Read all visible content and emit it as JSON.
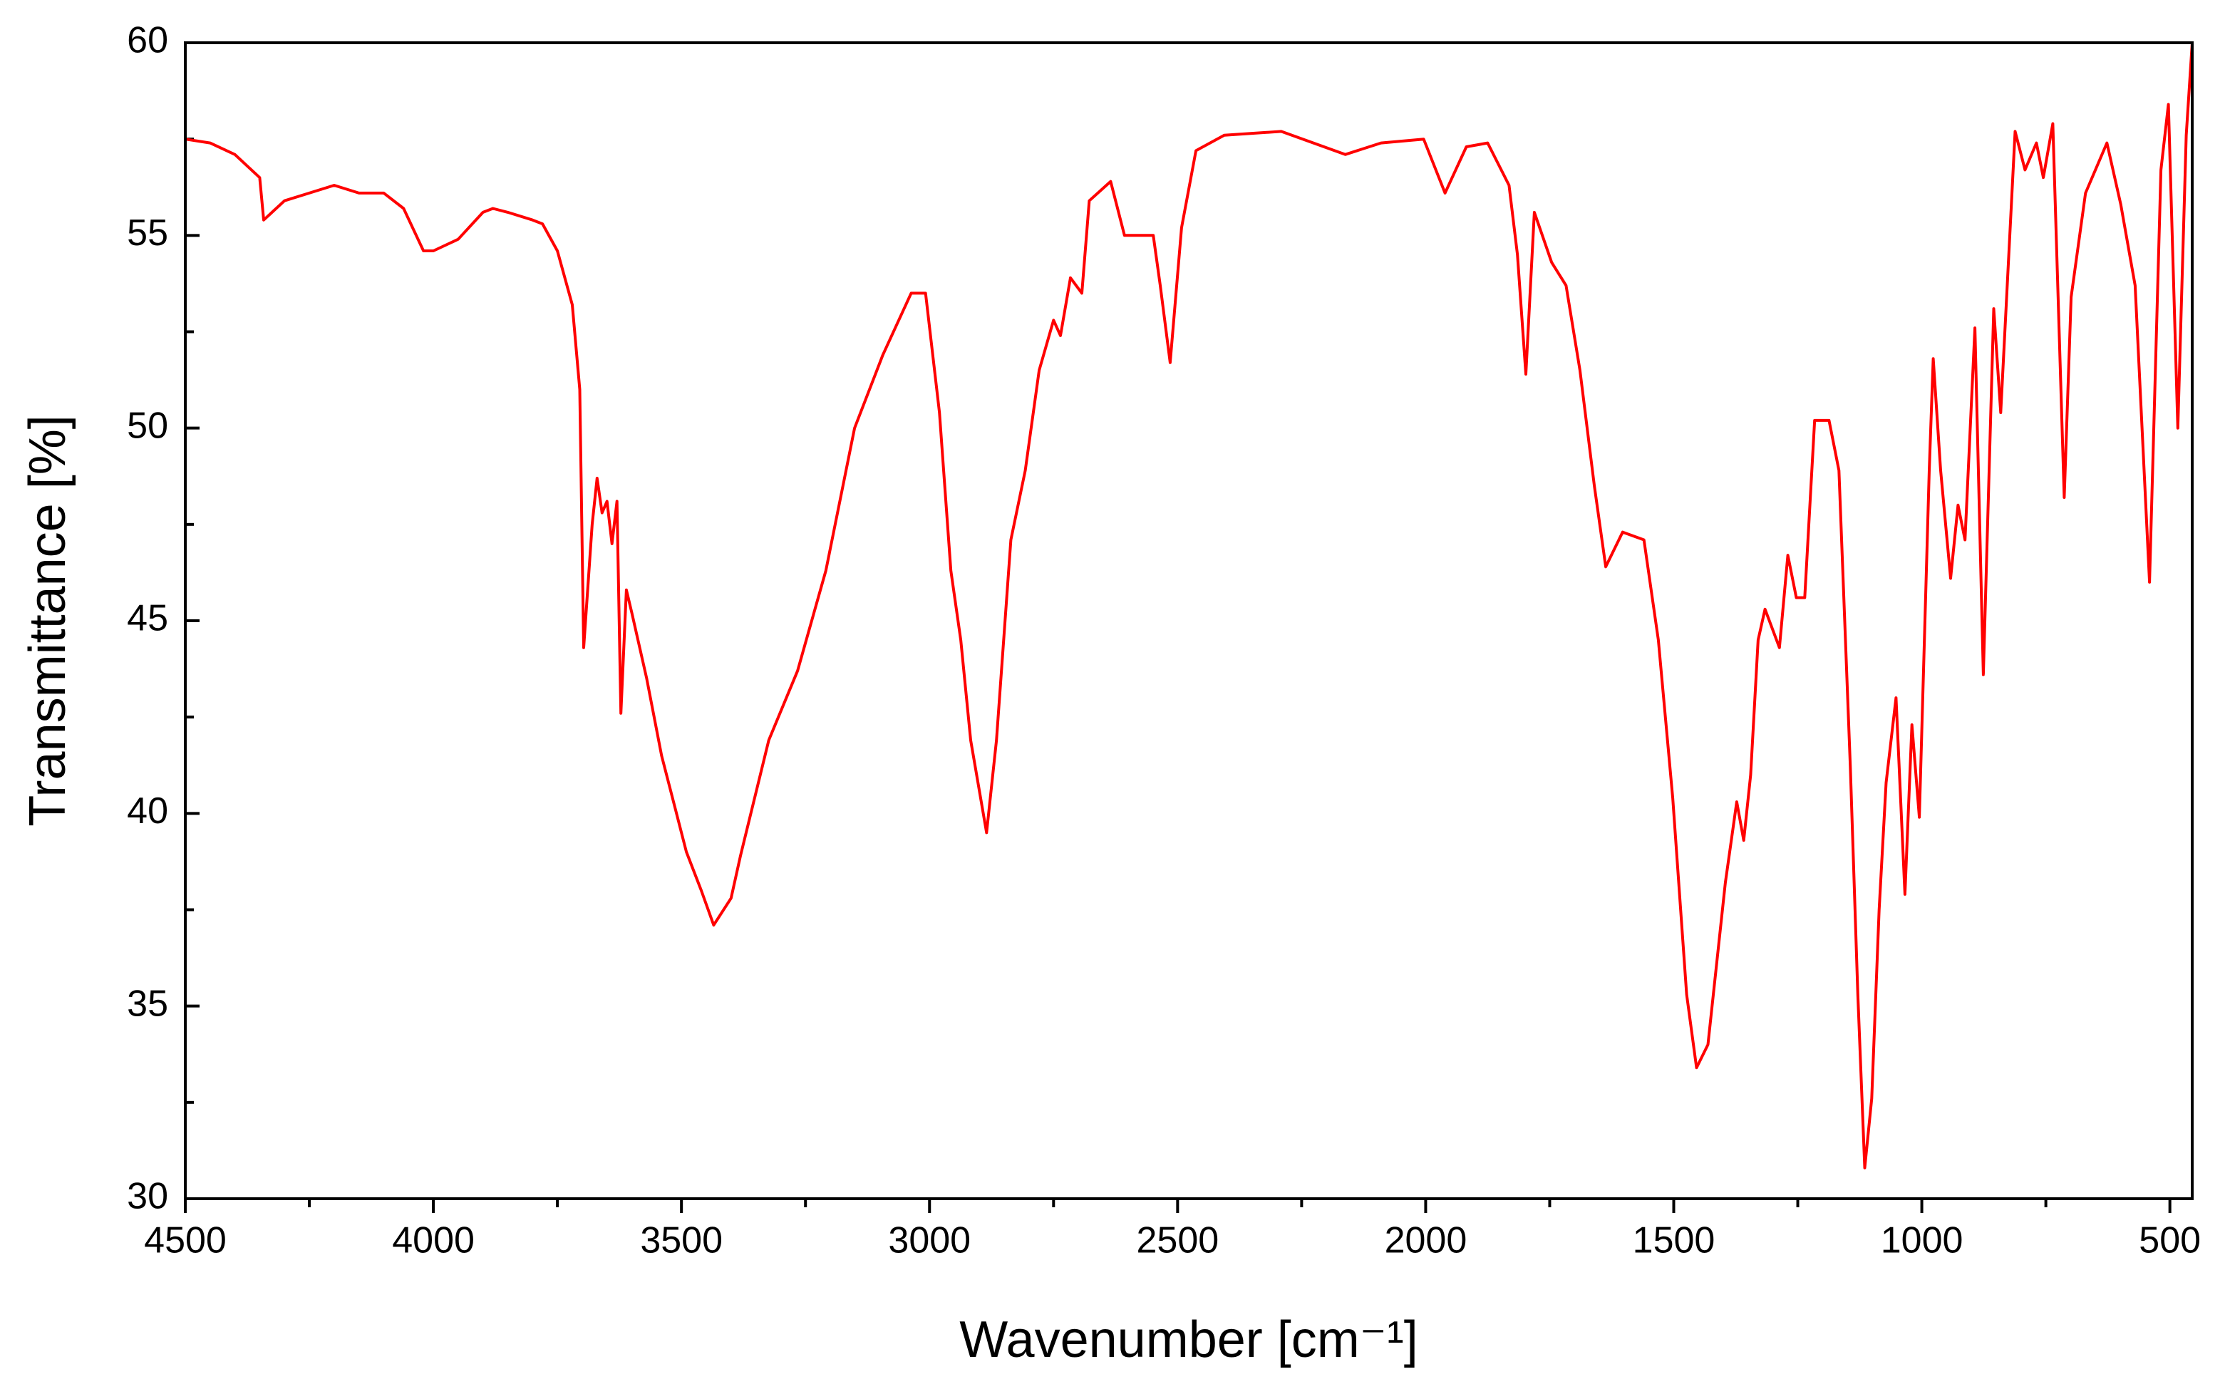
{
  "chart_data": {
    "type": "line",
    "x_label": "Wavenumber [cm⁻¹]",
    "y_label": "Transmittance [%]",
    "xlim": [
      4500,
      455
    ],
    "ylim": [
      30,
      60
    ],
    "xticks": [
      4500,
      4000,
      3500,
      3000,
      2500,
      2000,
      1500,
      1000,
      500
    ],
    "xminorticks": [
      4250,
      3750,
      3250,
      2750,
      2250,
      1750,
      1250,
      750
    ],
    "yticks": [
      30,
      35,
      40,
      45,
      50,
      55,
      60
    ],
    "yminorticks": [
      32.5,
      37.5,
      42.5,
      47.5,
      52.5,
      57.5
    ],
    "series": [
      {
        "color": "#ff0000",
        "x": [
          4500,
          4450,
          4400,
          4350,
          4342,
          4300,
          4250,
          4200,
          4150,
          4100,
          4060,
          4020,
          4000,
          3950,
          3900,
          3880,
          3850,
          3800,
          3780,
          3750,
          3720,
          3705,
          3697,
          3680,
          3670,
          3660,
          3650,
          3640,
          3630,
          3622,
          3611,
          3600,
          3570,
          3540,
          3510,
          3490,
          3460,
          3435,
          3400,
          3381,
          3324,
          3266,
          3209,
          3151,
          3094,
          3037,
          3008,
          2980,
          2957,
          2937,
          2917,
          2885,
          2865,
          2836,
          2807,
          2779,
          2750,
          2736,
          2716,
          2693,
          2678,
          2635,
          2607,
          2549,
          2535,
          2515,
          2492,
          2463,
          2406,
          2291,
          2162,
          2090,
          2004,
          1961,
          1918,
          1875,
          1832,
          1815,
          1798,
          1781,
          1746,
          1717,
          1689,
          1660,
          1637,
          1603,
          1560,
          1531,
          1502,
          1474,
          1454,
          1431,
          1396,
          1373,
          1359,
          1345,
          1330,
          1316,
          1287,
          1270,
          1253,
          1236,
          1216,
          1187,
          1167,
          1144,
          1129,
          1115,
          1101,
          1086,
          1072,
          1052,
          1034,
          1020,
          1005,
          985,
          977,
          962,
          942,
          927,
          913,
          893,
          876,
          855,
          841,
          812,
          792,
          769,
          755,
          736,
          713,
          699,
          670,
          627,
          599,
          570,
          541,
          518,
          503,
          484,
          467,
          455
        ],
        "values": [
          57.5,
          57.4,
          57.1,
          56.5,
          55.4,
          55.9,
          56.1,
          56.3,
          56.1,
          56.1,
          55.7,
          54.6,
          54.6,
          54.9,
          55.6,
          55.7,
          55.6,
          55.4,
          55.3,
          54.6,
          53.2,
          51,
          44.3,
          47.5,
          48.7,
          47.8,
          48.1,
          47.0,
          48.1,
          42.6,
          45.8,
          45.2,
          43.5,
          41.5,
          40,
          39,
          38,
          37.1,
          37.8,
          38.9,
          41.9,
          43.7,
          46.3,
          50.0,
          51.9,
          53.5,
          53.5,
          50.4,
          46.3,
          44.5,
          41.9,
          39.5,
          41.9,
          47.1,
          48.9,
          51.5,
          52.8,
          52.4,
          53.9,
          53.5,
          55.9,
          56.4,
          55.0,
          55.0,
          53.7,
          51.7,
          55.2,
          57.2,
          57.6,
          57.7,
          57.1,
          57.4,
          57.5,
          56.1,
          57.3,
          57.4,
          56.3,
          54.5,
          51.4,
          55.6,
          54.3,
          53.7,
          51.5,
          48.5,
          46.4,
          47.3,
          47.1,
          44.5,
          40.4,
          35.3,
          33.4,
          34.0,
          38.2,
          40.3,
          39.3,
          41.0,
          44.5,
          45.3,
          44.3,
          46.7,
          45.6,
          45.6,
          50.2,
          50.2,
          48.9,
          41.2,
          35.3,
          30.8,
          32.6,
          37.5,
          40.8,
          43.0,
          37.9,
          42.3,
          39.9,
          48.9,
          51.8,
          48.9,
          46.1,
          48.0,
          47.1,
          52.6,
          43.6,
          53.1,
          50.4,
          57.7,
          56.7,
          57.4,
          56.5,
          57.9,
          48.2,
          53.4,
          56.1,
          57.4,
          55.8,
          53.7,
          46.0,
          56.7,
          58.4,
          50.0,
          57.6,
          60
        ]
      }
    ]
  }
}
